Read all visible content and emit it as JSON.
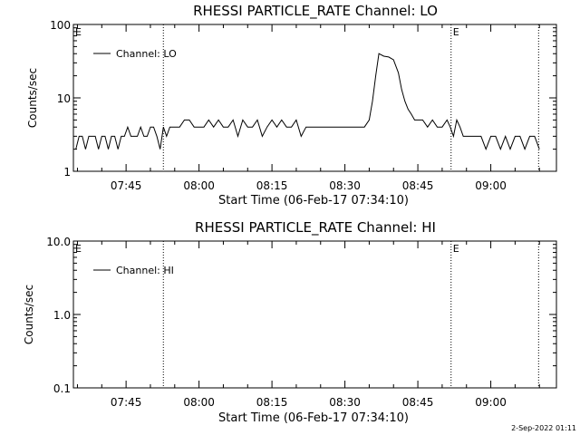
{
  "chart_data": [
    {
      "type": "line",
      "title": "RHESSI PARTICLE_RATE Channel: LO",
      "xlabel": "Start Time (06-Feb-17 07:34:10)",
      "ylabel": "Counts/sec",
      "yscale": "log",
      "ylim": [
        1,
        100
      ],
      "xlim": [
        "07:34:10",
        "09:13:30"
      ],
      "x_ticks": [
        "07:45",
        "08:00",
        "08:15",
        "08:30",
        "08:45",
        "09:00"
      ],
      "y_ticks": [
        "1",
        "10",
        "100"
      ],
      "legend": {
        "position": "top-left",
        "entries": [
          "Channel: LO"
        ]
      },
      "markers": [
        {
          "x": "07:34:10",
          "label": "E"
        },
        {
          "x": "07:52:40",
          "label": ""
        },
        {
          "x": "08:51:50",
          "label": "E"
        },
        {
          "x": "09:09:50",
          "label": ""
        }
      ],
      "series": [
        {
          "name": "Channel: LO",
          "x": [
            "07:34:40",
            "07:35:20",
            "07:36:00",
            "07:36:40",
            "07:37:20",
            "07:38:00",
            "07:38:40",
            "07:39:20",
            "07:40:00",
            "07:40:40",
            "07:41:20",
            "07:42:00",
            "07:42:40",
            "07:43:20",
            "07:44:00",
            "07:44:40",
            "07:45:20",
            "07:46:00",
            "07:46:40",
            "07:47:20",
            "07:48:00",
            "07:48:40",
            "07:49:20",
            "07:50:00",
            "07:50:40",
            "07:51:20",
            "07:52:00",
            "07:52:40",
            "07:53:20",
            "07:54:00",
            "07:56:00",
            "07:57:00",
            "07:58:00",
            "07:59:00",
            "08:00:00",
            "08:01:00",
            "08:02:00",
            "08:03:00",
            "08:04:00",
            "08:05:00",
            "08:06:00",
            "08:07:00",
            "08:08:00",
            "08:09:00",
            "08:10:00",
            "08:11:00",
            "08:12:00",
            "08:13:00",
            "08:14:00",
            "08:15:00",
            "08:16:00",
            "08:17:00",
            "08:18:00",
            "08:19:00",
            "08:20:00",
            "08:21:00",
            "08:22:00",
            "08:23:00",
            "08:24:00",
            "08:25:00",
            "08:26:00",
            "08:28:00",
            "08:30:00",
            "08:32:00",
            "08:33:00",
            "08:34:00",
            "08:35:00",
            "08:35:40",
            "08:36:20",
            "08:37:00",
            "08:38:00",
            "08:39:00",
            "08:40:00",
            "08:41:00",
            "08:41:40",
            "08:42:20",
            "08:43:00",
            "08:43:40",
            "08:44:20",
            "08:45:00",
            "08:46:00",
            "08:47:00",
            "08:48:00",
            "08:49:00",
            "08:50:00",
            "08:51:00",
            "08:51:40",
            "08:52:20",
            "08:53:00",
            "08:53:40",
            "08:54:20",
            "08:55:00",
            "08:56:00",
            "08:57:00",
            "08:58:00",
            "08:59:00",
            "09:00:00",
            "09:01:00",
            "09:02:00",
            "09:03:00",
            "09:04:00",
            "09:05:00",
            "09:06:00",
            "09:07:00",
            "09:08:00",
            "09:09:00",
            "09:10:00"
          ],
          "y": [
            2,
            3,
            3,
            2,
            3,
            3,
            3,
            2,
            3,
            3,
            2,
            3,
            3,
            2,
            3,
            3,
            4,
            3,
            3,
            3,
            4,
            3,
            3,
            4,
            4,
            3,
            2,
            4,
            3,
            4,
            4,
            5,
            5,
            4,
            4,
            4,
            5,
            4,
            5,
            4,
            4,
            5,
            3,
            5,
            4,
            4,
            5,
            3,
            4,
            5,
            4,
            5,
            4,
            4,
            5,
            3,
            4,
            4,
            4,
            4,
            4,
            4,
            4,
            4,
            4,
            4,
            5,
            9,
            20,
            40,
            37,
            36,
            33,
            22,
            13,
            9,
            7,
            6,
            5,
            5,
            5,
            4,
            5,
            4,
            4,
            5,
            4,
            3,
            5,
            4,
            3,
            3,
            3,
            3,
            3,
            2,
            3,
            3,
            2,
            3,
            2,
            3,
            3,
            2,
            3,
            3,
            2
          ]
        }
      ]
    },
    {
      "type": "line",
      "title": "RHESSI PARTICLE_RATE Channel: HI",
      "xlabel": "Start Time (06-Feb-17 07:34:10)",
      "ylabel": "Counts/sec",
      "yscale": "log",
      "ylim": [
        0.1,
        10
      ],
      "xlim": [
        "07:34:10",
        "09:13:30"
      ],
      "x_ticks": [
        "07:45",
        "08:00",
        "08:15",
        "08:30",
        "08:45",
        "09:00"
      ],
      "y_ticks": [
        "0.1",
        "1.0",
        "10.0"
      ],
      "legend": {
        "position": "top-left",
        "entries": [
          "Channel: HI"
        ]
      },
      "markers": [
        {
          "x": "07:34:10",
          "label": "E"
        },
        {
          "x": "07:52:40",
          "label": ""
        },
        {
          "x": "08:51:50",
          "label": "E"
        },
        {
          "x": "09:09:50",
          "label": ""
        }
      ],
      "series": [
        {
          "name": "Channel: HI",
          "x": [],
          "y": []
        }
      ]
    }
  ],
  "footer": {
    "timestamp": "2-Sep-2022 01:11"
  }
}
